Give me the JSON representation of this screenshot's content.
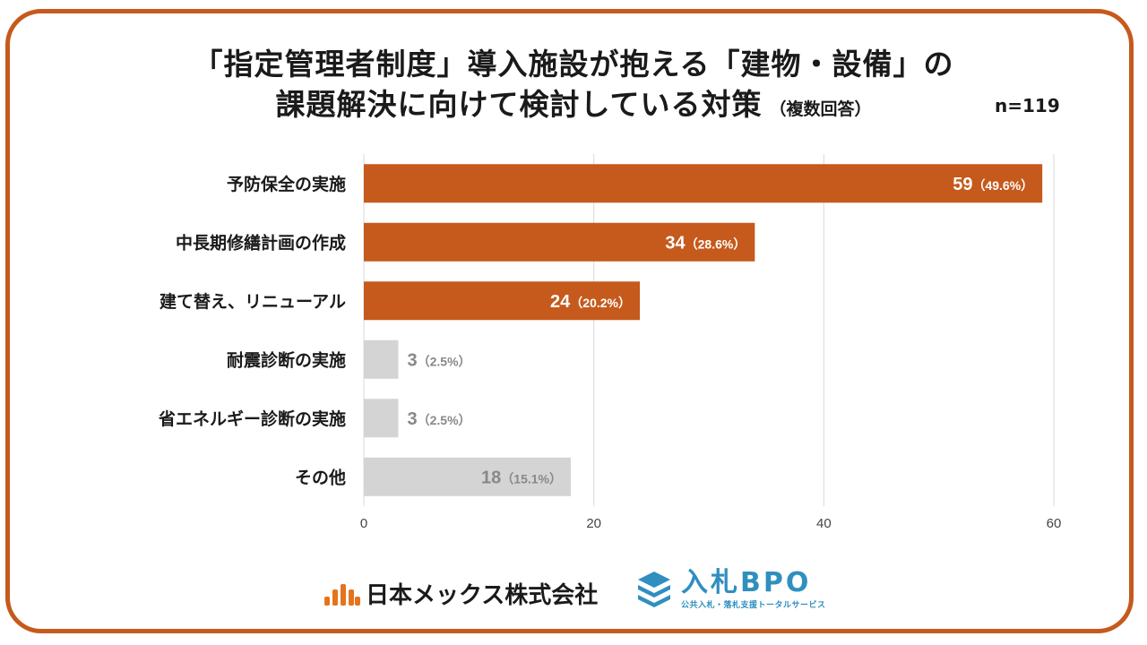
{
  "title": {
    "line1": "「指定管理者制度」導入施設が抱える「建物・設備」の",
    "line2": "課題解決に向けて検討している対策",
    "note": "（複数回答）",
    "sample_size": "n=119"
  },
  "colors": {
    "frame": "#c55a1c",
    "highlight_bar": "#c55a1c",
    "muted_bar": "#d4d4d4",
    "highlight_label": "#ffffff",
    "muted_label": "#888888"
  },
  "chart_data": {
    "type": "bar",
    "orientation": "horizontal",
    "categories": [
      "予防保全の実施",
      "中長期修繕計画の作成",
      "建て替え、リニューアル",
      "耐震診断の実施",
      "省エネルギー診断の実施",
      "その他"
    ],
    "values": [
      59,
      34,
      24,
      3,
      3,
      18
    ],
    "percent_labels": [
      "（49.6%）",
      "（28.6%）",
      "（20.2%）",
      "（2.5%）",
      "（2.5%）",
      "（15.1%）"
    ],
    "highlighted": [
      true,
      true,
      true,
      false,
      false,
      false
    ],
    "xlim": [
      0,
      60
    ],
    "xticks": [
      0,
      20,
      40,
      60
    ],
    "grid": true
  },
  "logos": {
    "company": "日本メックス株式会社",
    "service": "入札BPO",
    "service_tagline": "公共入札・落札支援トータルサービス"
  }
}
